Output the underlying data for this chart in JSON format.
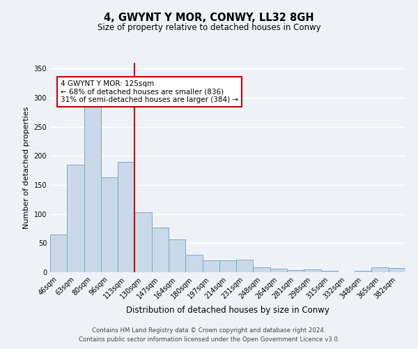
{
  "title": "4, GWYNT Y MOR, CONWY, LL32 8GH",
  "subtitle": "Size of property relative to detached houses in Conwy",
  "xlabel": "Distribution of detached houses by size in Conwy",
  "ylabel": "Number of detached properties",
  "categories": [
    "46sqm",
    "63sqm",
    "80sqm",
    "96sqm",
    "113sqm",
    "130sqm",
    "147sqm",
    "164sqm",
    "180sqm",
    "197sqm",
    "214sqm",
    "231sqm",
    "248sqm",
    "264sqm",
    "281sqm",
    "298sqm",
    "315sqm",
    "332sqm",
    "348sqm",
    "365sqm",
    "382sqm"
  ],
  "values": [
    65,
    185,
    293,
    163,
    190,
    103,
    77,
    57,
    30,
    21,
    21,
    22,
    9,
    6,
    4,
    5,
    3,
    0,
    2,
    8,
    7
  ],
  "bar_color": "#c9d9ea",
  "bar_edge_color": "#7aaac8",
  "vline_color": "#cc0000",
  "annotation_title": "4 GWYNT Y MOR: 125sqm",
  "annotation_line1": "← 68% of detached houses are smaller (836)",
  "annotation_line2": "31% of semi-detached houses are larger (384) →",
  "annotation_box_color": "#cc0000",
  "ylim": [
    0,
    360
  ],
  "yticks": [
    0,
    50,
    100,
    150,
    200,
    250,
    300,
    350
  ],
  "footer_line1": "Contains HM Land Registry data © Crown copyright and database right 2024.",
  "footer_line2": "Contains public sector information licensed under the Open Government Licence v3.0.",
  "background_color": "#eef2f7",
  "grid_color": "#ffffff"
}
